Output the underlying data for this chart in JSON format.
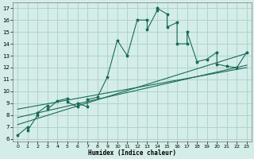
{
  "xlabel": "Humidex (Indice chaleur)",
  "background_color": "#d4ede8",
  "grid_color": "#aed4cc",
  "line_color": "#1a6b5a",
  "xlim": [
    -0.5,
    23.5
  ],
  "ylim": [
    5.8,
    17.5
  ],
  "xticks": [
    0,
    1,
    2,
    3,
    4,
    5,
    6,
    7,
    8,
    9,
    10,
    11,
    12,
    13,
    14,
    15,
    16,
    17,
    18,
    19,
    20,
    21,
    22,
    23
  ],
  "yticks": [
    6,
    7,
    8,
    9,
    10,
    11,
    12,
    13,
    14,
    15,
    16,
    17
  ],
  "scatter_x": [
    0,
    1,
    1,
    2,
    2,
    3,
    3,
    4,
    5,
    5,
    6,
    6,
    7,
    7,
    8,
    9,
    10,
    11,
    12,
    13,
    13,
    14,
    14,
    15,
    15,
    16,
    16,
    17,
    17,
    18,
    19,
    20,
    20,
    21,
    22,
    23
  ],
  "scatter_y": [
    6.3,
    7.0,
    6.7,
    8.0,
    8.2,
    8.8,
    8.5,
    9.2,
    9.4,
    9.1,
    8.7,
    9.0,
    8.7,
    9.3,
    9.5,
    11.2,
    14.3,
    13.0,
    16.0,
    16.0,
    15.2,
    16.8,
    17.0,
    16.5,
    15.4,
    15.8,
    14.0,
    14.0,
    15.0,
    12.5,
    12.7,
    13.3,
    12.3,
    12.1,
    12.0,
    13.3
  ],
  "line1_x": [
    0,
    23
  ],
  "line1_y": [
    7.2,
    13.2
  ],
  "line2_x": [
    0,
    23
  ],
  "line2_y": [
    7.8,
    12.2
  ],
  "line3_x": [
    0,
    23
  ],
  "line3_y": [
    8.5,
    12.0
  ]
}
